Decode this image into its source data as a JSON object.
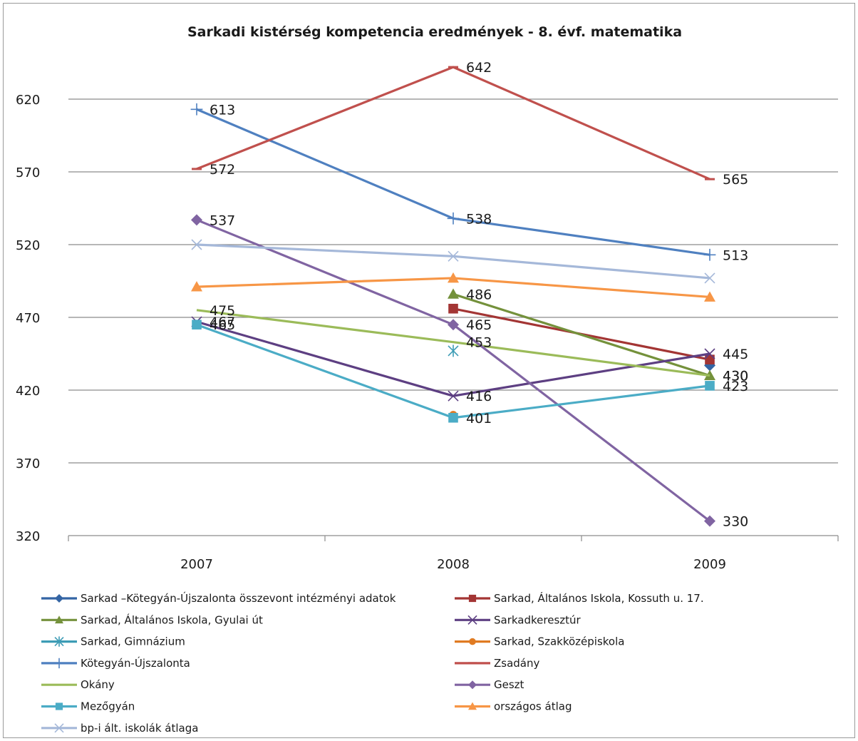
{
  "chart_data": {
    "type": "line",
    "title": "Sarkadi kistérség kompetencia eredmények - 8. évf. matematika",
    "xlabel": "",
    "ylabel": "",
    "categories": [
      "2007",
      "2008",
      "2009"
    ],
    "ylim": [
      320,
      620
    ],
    "yticks": [
      320,
      370,
      420,
      470,
      520,
      570,
      620
    ],
    "grid": true,
    "legend_position": "bottom",
    "series": [
      {
        "name": "Sarkad –Kötegyán-Újszalonta összevont intézményi adatok",
        "color": "#3465a4",
        "marker": "diamond",
        "values": [
          null,
          null,
          437
        ],
        "labels": [
          null,
          null,
          null
        ]
      },
      {
        "name": "Sarkad, Általános Iskola, Kossuth u. 17.",
        "color": "#a33534",
        "marker": "square",
        "values": [
          null,
          476,
          441
        ],
        "labels": [
          null,
          null,
          null
        ]
      },
      {
        "name": "Sarkad, Általános Iskola, Gyulai út",
        "color": "#74913b",
        "marker": "triangle",
        "values": [
          null,
          486,
          430
        ],
        "labels": [
          null,
          "486",
          "430"
        ]
      },
      {
        "name": "Sarkadkeresztúr",
        "color": "#5d3f82",
        "marker": "x",
        "values": [
          467,
          416,
          445
        ],
        "labels": [
          "467",
          "416",
          "445"
        ]
      },
      {
        "name": "Sarkad, Gimnázium",
        "color": "#3d9cb5",
        "marker": "asterisk",
        "values": [
          null,
          447,
          null
        ],
        "labels": [
          null,
          null,
          null
        ]
      },
      {
        "name": "Sarkad, Szakközépiskola",
        "color": "#e07b22",
        "marker": "circle",
        "values": [
          null,
          403,
          null
        ],
        "labels": [
          null,
          null,
          null
        ]
      },
      {
        "name": "Kötegyán-Újszalonta",
        "color": "#4f80c0",
        "marker": "plus",
        "values": [
          613,
          538,
          513
        ],
        "labels": [
          "613",
          "538",
          "513"
        ]
      },
      {
        "name": "Zsadány",
        "color": "#c0504d",
        "marker": "dash",
        "values": [
          572,
          642,
          565
        ],
        "labels": [
          "572",
          "642",
          "565"
        ]
      },
      {
        "name": "Okány",
        "color": "#9bbb59",
        "marker": "none",
        "values": [
          475,
          453,
          430
        ],
        "labels": [
          "475",
          "453",
          "430"
        ]
      },
      {
        "name": "Geszt",
        "color": "#8064a2",
        "marker": "diamond",
        "values": [
          537,
          465,
          330
        ],
        "labels": [
          "537",
          "465",
          "330"
        ]
      },
      {
        "name": "Mezőgyán",
        "color": "#4bacc6",
        "marker": "square",
        "values": [
          465,
          401,
          423
        ],
        "labels": [
          "465",
          "401",
          "423"
        ]
      },
      {
        "name": "országos átlag",
        "color": "#f79646",
        "marker": "triangle",
        "values": [
          491,
          497,
          484
        ],
        "labels": [
          null,
          null,
          null
        ]
      },
      {
        "name": "bp-i ált. iskolák átlaga",
        "color": "#a5b8d9",
        "marker": "x",
        "values": [
          520,
          512,
          497
        ],
        "labels": [
          null,
          null,
          null
        ]
      }
    ]
  }
}
